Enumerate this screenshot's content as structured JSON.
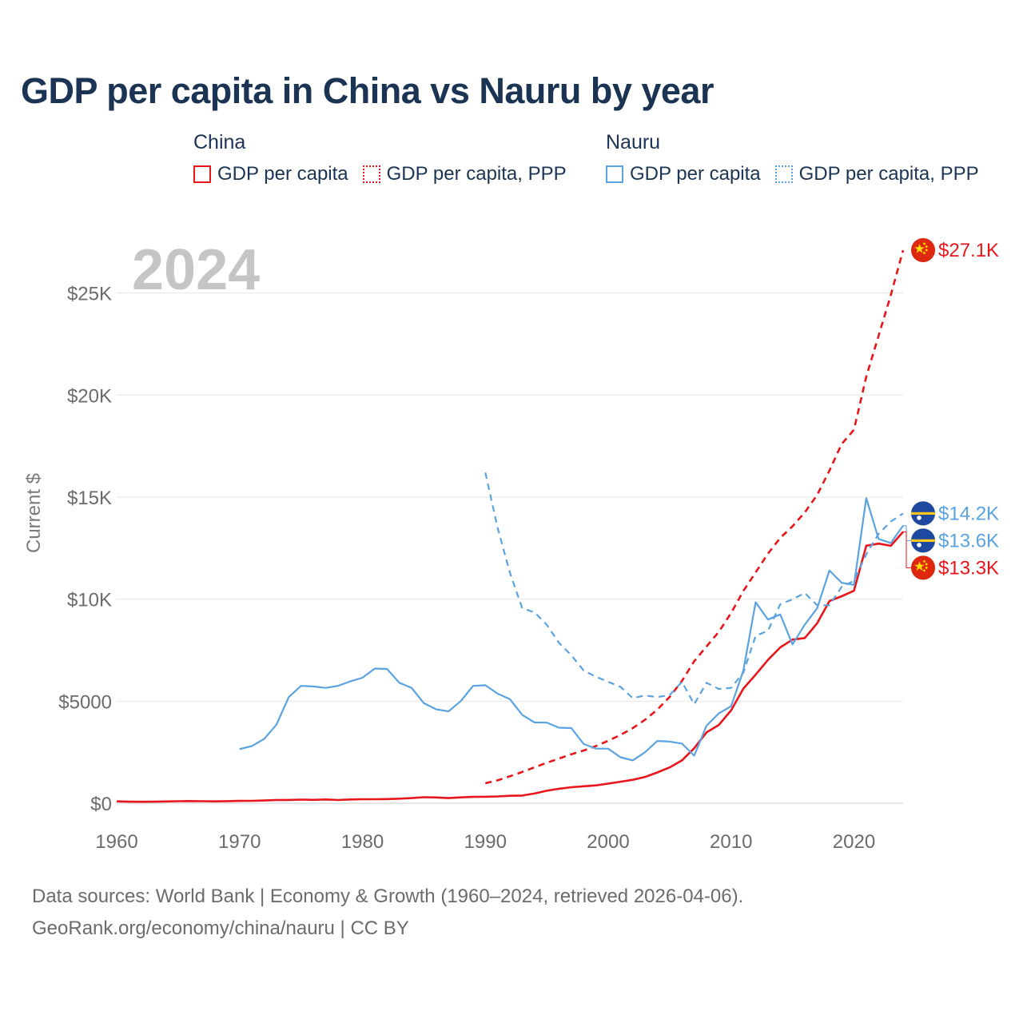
{
  "title": "GDP per capita in China vs Nauru by year",
  "legend": {
    "groups": [
      {
        "name": "China",
        "items": [
          {
            "label": "GDP per capita",
            "style": "solid",
            "color": "#e8161b"
          },
          {
            "label": "GDP per capita, PPP",
            "style": "dotted",
            "color": "#e8161b"
          }
        ]
      },
      {
        "name": "Nauru",
        "items": [
          {
            "label": "GDP per capita",
            "style": "solid",
            "color": "#5ba3e0"
          },
          {
            "label": "GDP per capita, PPP",
            "style": "dotted",
            "color": "#5ba3e0"
          }
        ]
      }
    ]
  },
  "chart_data": {
    "type": "line",
    "title": "GDP per capita in China vs Nauru by year",
    "year_label": "2024",
    "xlabel": "",
    "ylabel": "Current $",
    "xlim": [
      1960,
      2024
    ],
    "ylim": [
      0,
      27100
    ],
    "x_ticks": [
      {
        "value": 1960,
        "label": "1960"
      },
      {
        "value": 1970,
        "label": "1970"
      },
      {
        "value": 1980,
        "label": "1980"
      },
      {
        "value": 1990,
        "label": "1990"
      },
      {
        "value": 2000,
        "label": "2000"
      },
      {
        "value": 2010,
        "label": "2010"
      },
      {
        "value": 2020,
        "label": "2020"
      }
    ],
    "y_ticks": [
      {
        "value": 0,
        "label": "$0"
      },
      {
        "value": 5000,
        "label": "$5000"
      },
      {
        "value": 10000,
        "label": "$10K"
      },
      {
        "value": 15000,
        "label": "$15K"
      },
      {
        "value": 20000,
        "label": "$20K"
      },
      {
        "value": 25000,
        "label": "$25K"
      }
    ],
    "grid": true,
    "series": [
      {
        "name": "China GDP per capita",
        "country": "China",
        "color": "#e8161b",
        "dash": "solid",
        "end_label": "$13.3K",
        "flag": "china",
        "points": [
          [
            1960,
            90
          ],
          [
            1961,
            76
          ],
          [
            1962,
            70
          ],
          [
            1963,
            74
          ],
          [
            1964,
            85
          ],
          [
            1965,
            98
          ],
          [
            1966,
            104
          ],
          [
            1967,
            96
          ],
          [
            1968,
            91
          ],
          [
            1969,
            100
          ],
          [
            1970,
            113
          ],
          [
            1971,
            119
          ],
          [
            1972,
            132
          ],
          [
            1973,
            157
          ],
          [
            1974,
            160
          ],
          [
            1975,
            178
          ],
          [
            1976,
            165
          ],
          [
            1977,
            185
          ],
          [
            1978,
            156
          ],
          [
            1979,
            184
          ],
          [
            1980,
            195
          ],
          [
            1981,
            197
          ],
          [
            1982,
            203
          ],
          [
            1983,
            225
          ],
          [
            1984,
            250
          ],
          [
            1985,
            294
          ],
          [
            1986,
            282
          ],
          [
            1987,
            251
          ],
          [
            1988,
            284
          ],
          [
            1989,
            311
          ],
          [
            1990,
            318
          ],
          [
            1991,
            333
          ],
          [
            1992,
            366
          ],
          [
            1993,
            377
          ],
          [
            1994,
            473
          ],
          [
            1995,
            610
          ],
          [
            1996,
            709
          ],
          [
            1997,
            782
          ],
          [
            1998,
            829
          ],
          [
            1999,
            873
          ],
          [
            2000,
            959
          ],
          [
            2001,
            1053
          ],
          [
            2002,
            1149
          ],
          [
            2003,
            1289
          ],
          [
            2004,
            1509
          ],
          [
            2005,
            1753
          ],
          [
            2006,
            2099
          ],
          [
            2007,
            2694
          ],
          [
            2008,
            3468
          ],
          [
            2009,
            3832
          ],
          [
            2010,
            4550
          ],
          [
            2011,
            5614
          ],
          [
            2012,
            6301
          ],
          [
            2013,
            7020
          ],
          [
            2014,
            7636
          ],
          [
            2015,
            8016
          ],
          [
            2016,
            8094
          ],
          [
            2017,
            8817
          ],
          [
            2018,
            9905
          ],
          [
            2019,
            10144
          ],
          [
            2020,
            10409
          ],
          [
            2021,
            12618
          ],
          [
            2022,
            12720
          ],
          [
            2023,
            12614
          ],
          [
            2024,
            13300
          ]
        ]
      },
      {
        "name": "China GDP per capita, PPP",
        "country": "China",
        "color": "#e8161b",
        "dash": "dashed",
        "end_label": "$27.1K",
        "flag": "china",
        "points": [
          [
            1990,
            980
          ],
          [
            1991,
            1120
          ],
          [
            1992,
            1320
          ],
          [
            1993,
            1530
          ],
          [
            1994,
            1760
          ],
          [
            1995,
            1980
          ],
          [
            1996,
            2190
          ],
          [
            1997,
            2400
          ],
          [
            1998,
            2580
          ],
          [
            1999,
            2800
          ],
          [
            2000,
            3060
          ],
          [
            2001,
            3350
          ],
          [
            2002,
            3680
          ],
          [
            2003,
            4090
          ],
          [
            2004,
            4590
          ],
          [
            2005,
            5210
          ],
          [
            2006,
            5990
          ],
          [
            2007,
            6960
          ],
          [
            2008,
            7680
          ],
          [
            2009,
            8400
          ],
          [
            2010,
            9320
          ],
          [
            2011,
            10400
          ],
          [
            2012,
            11310
          ],
          [
            2013,
            12230
          ],
          [
            2014,
            13000
          ],
          [
            2015,
            13570
          ],
          [
            2016,
            14250
          ],
          [
            2017,
            15100
          ],
          [
            2018,
            16300
          ],
          [
            2019,
            17600
          ],
          [
            2020,
            18300
          ],
          [
            2021,
            20900
          ],
          [
            2022,
            22900
          ],
          [
            2023,
            24900
          ],
          [
            2024,
            27100
          ]
        ]
      },
      {
        "name": "Nauru GDP per capita",
        "country": "Nauru",
        "color": "#5ba3e0",
        "dash": "solid",
        "end_label": "$13.6K",
        "flag": "nauru",
        "points": [
          [
            1970,
            2650
          ],
          [
            1971,
            2800
          ],
          [
            1972,
            3150
          ],
          [
            1973,
            3850
          ],
          [
            1974,
            5200
          ],
          [
            1975,
            5750
          ],
          [
            1976,
            5720
          ],
          [
            1977,
            5650
          ],
          [
            1978,
            5750
          ],
          [
            1979,
            5970
          ],
          [
            1980,
            6150
          ],
          [
            1981,
            6600
          ],
          [
            1982,
            6580
          ],
          [
            1983,
            5900
          ],
          [
            1984,
            5650
          ],
          [
            1985,
            4900
          ],
          [
            1986,
            4600
          ],
          [
            1987,
            4500
          ],
          [
            1988,
            5000
          ],
          [
            1989,
            5750
          ],
          [
            1990,
            5780
          ],
          [
            1991,
            5370
          ],
          [
            1992,
            5100
          ],
          [
            1993,
            4330
          ],
          [
            1994,
            3960
          ],
          [
            1995,
            3950
          ],
          [
            1996,
            3700
          ],
          [
            1997,
            3680
          ],
          [
            1998,
            2900
          ],
          [
            1999,
            2680
          ],
          [
            2000,
            2670
          ],
          [
            2001,
            2250
          ],
          [
            2002,
            2100
          ],
          [
            2003,
            2500
          ],
          [
            2004,
            3050
          ],
          [
            2005,
            3020
          ],
          [
            2006,
            2920
          ],
          [
            2007,
            2330
          ],
          [
            2008,
            3800
          ],
          [
            2009,
            4400
          ],
          [
            2010,
            4750
          ],
          [
            2011,
            6500
          ],
          [
            2012,
            9850
          ],
          [
            2013,
            9000
          ],
          [
            2014,
            9250
          ],
          [
            2015,
            7780
          ],
          [
            2016,
            8750
          ],
          [
            2017,
            9550
          ],
          [
            2018,
            11400
          ],
          [
            2019,
            10800
          ],
          [
            2020,
            10700
          ],
          [
            2021,
            14950
          ],
          [
            2022,
            12950
          ],
          [
            2023,
            12750
          ],
          [
            2024,
            13600
          ]
        ]
      },
      {
        "name": "Nauru GDP per capita, PPP",
        "country": "Nauru",
        "color": "#5ba3e0",
        "dash": "dashed",
        "end_label": "$14.2K",
        "flag": "nauru",
        "points": [
          [
            1990,
            16200
          ],
          [
            1991,
            13500
          ],
          [
            1992,
            11300
          ],
          [
            1993,
            9550
          ],
          [
            1994,
            9350
          ],
          [
            1995,
            8750
          ],
          [
            1996,
            7850
          ],
          [
            1997,
            7250
          ],
          [
            1998,
            6500
          ],
          [
            1999,
            6200
          ],
          [
            2000,
            5950
          ],
          [
            2001,
            5700
          ],
          [
            2002,
            5150
          ],
          [
            2003,
            5280
          ],
          [
            2004,
            5200
          ],
          [
            2005,
            5300
          ],
          [
            2006,
            5950
          ],
          [
            2007,
            4850
          ],
          [
            2008,
            5900
          ],
          [
            2009,
            5600
          ],
          [
            2010,
            5650
          ],
          [
            2011,
            6400
          ],
          [
            2012,
            8200
          ],
          [
            2013,
            8450
          ],
          [
            2014,
            9750
          ],
          [
            2015,
            9990
          ],
          [
            2016,
            10300
          ],
          [
            2017,
            9700
          ],
          [
            2018,
            9700
          ],
          [
            2019,
            10600
          ],
          [
            2020,
            10900
          ],
          [
            2021,
            12200
          ],
          [
            2022,
            13200
          ],
          [
            2023,
            13800
          ],
          [
            2024,
            14200
          ]
        ]
      }
    ]
  },
  "footer": {
    "line1": "Data sources: World Bank | Economy & Growth (1960–2024, retrieved 2026-04-06).",
    "line2": "GeoRank.org/economy/china/nauru | CC BY"
  }
}
